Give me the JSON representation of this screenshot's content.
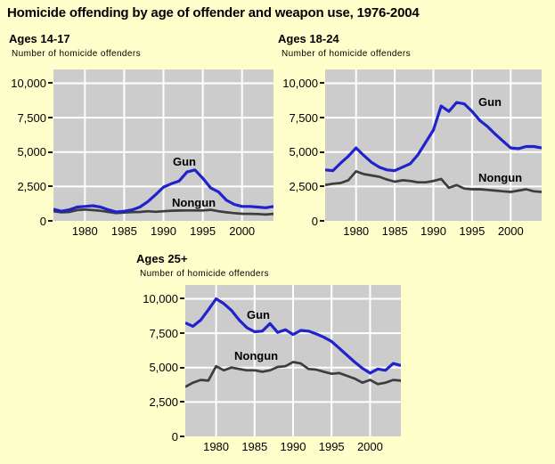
{
  "page_title": "Homicide offending by age of offender and weapon use, 1976-2004",
  "colors": {
    "page_bg": "#FFFFCC",
    "plot_bg": "#CCCCCC",
    "grid": "#FFFFFF",
    "gun": "#2222CC",
    "nongun": "#3D3D3D",
    "text": "#000000",
    "tick": "#1A1A1A"
  },
  "years": [
    1976,
    1977,
    1978,
    1979,
    1980,
    1981,
    1982,
    1983,
    1984,
    1985,
    1986,
    1987,
    1988,
    1989,
    1990,
    1991,
    1992,
    1993,
    1994,
    1995,
    1996,
    1997,
    1998,
    1999,
    2000,
    2001,
    2002,
    2003,
    2004
  ],
  "chart_data": [
    {
      "type": "line",
      "title": "Ages 14-17",
      "ylabel": "Number of homicide offenders",
      "xlabel": "",
      "xlim": [
        1976,
        2004
      ],
      "ylim": [
        0,
        11000
      ],
      "grid": true,
      "x_ticks": [
        1980,
        1985,
        1990,
        1995,
        2000
      ],
      "y_ticks": [
        {
          "value": 0,
          "label": "0"
        },
        {
          "value": 2500,
          "label": "2,500"
        },
        {
          "value": 5000,
          "label": "5,000"
        },
        {
          "value": 7500,
          "label": "7,500"
        },
        {
          "value": 10000,
          "label": "10,000"
        }
      ],
      "series": [
        {
          "name": "Nongun",
          "color_key": "nongun",
          "values": [
            700,
            620,
            650,
            780,
            820,
            780,
            730,
            650,
            560,
            600,
            640,
            650,
            700,
            660,
            700,
            740,
            750,
            760,
            760,
            760,
            800,
            700,
            620,
            560,
            520,
            510,
            500,
            460,
            510
          ],
          "label_pos": {
            "x": 133,
            "y": 142
          }
        },
        {
          "name": "Gun",
          "color_key": "gun",
          "values": [
            850,
            700,
            800,
            1000,
            1050,
            1100,
            1000,
            800,
            650,
            700,
            800,
            1000,
            1400,
            1900,
            2450,
            2700,
            2900,
            3550,
            3700,
            3100,
            2400,
            2100,
            1500,
            1200,
            1050,
            1050,
            1000,
            950,
            1050
          ],
          "label_pos": {
            "x": 134,
            "y": 96
          }
        }
      ]
    },
    {
      "type": "line",
      "title": "Ages 18-24",
      "ylabel": "Number of homicide offenders",
      "xlabel": "",
      "xlim": [
        1976,
        2004
      ],
      "ylim": [
        0,
        11000
      ],
      "grid": true,
      "x_ticks": [
        1980,
        1985,
        1990,
        1995,
        2000
      ],
      "y_ticks": [
        {
          "value": 0,
          "label": "0"
        },
        {
          "value": 2500,
          "label": "2,500"
        },
        {
          "value": 5000,
          "label": "5,000"
        },
        {
          "value": 7500,
          "label": "7,500"
        },
        {
          "value": 10000,
          "label": "10,000"
        }
      ],
      "series": [
        {
          "name": "Nongun",
          "color_key": "nongun",
          "values": [
            2600,
            2700,
            2750,
            2950,
            3600,
            3400,
            3300,
            3200,
            3000,
            2850,
            2950,
            2900,
            2800,
            2800,
            2900,
            3050,
            2400,
            2600,
            2350,
            2300,
            2300,
            2250,
            2200,
            2150,
            2100,
            2200,
            2300,
            2150,
            2100
          ],
          "label_pos": {
            "x": 172,
            "y": 114
          }
        },
        {
          "name": "Gun",
          "color_key": "gun",
          "values": [
            3700,
            3650,
            4200,
            4700,
            5300,
            4750,
            4250,
            3900,
            3700,
            3650,
            3900,
            4150,
            4800,
            5700,
            6600,
            8350,
            7950,
            8600,
            8500,
            7950,
            7300,
            6850,
            6300,
            5800,
            5300,
            5250,
            5400,
            5400,
            5300
          ],
          "label_pos": {
            "x": 172,
            "y": 29
          }
        }
      ]
    },
    {
      "type": "line",
      "title": "Ages 25+",
      "ylabel": "Number of homicide offenders",
      "xlabel": "",
      "xlim": [
        1976,
        2004
      ],
      "ylim": [
        0,
        11000
      ],
      "grid": true,
      "x_ticks": [
        1980,
        1985,
        1990,
        1995,
        2000
      ],
      "y_ticks": [
        {
          "value": 0,
          "label": "0"
        },
        {
          "value": 2500,
          "label": "2,500"
        },
        {
          "value": 5000,
          "label": "5,000"
        },
        {
          "value": 7500,
          "label": "7,500"
        },
        {
          "value": 10000,
          "label": "10,000"
        }
      ],
      "series": [
        {
          "name": "Nongun",
          "color_key": "nongun",
          "values": [
            3600,
            3900,
            4100,
            4050,
            5100,
            4800,
            5000,
            4900,
            4800,
            4800,
            4700,
            4800,
            5050,
            5100,
            5400,
            5300,
            4900,
            4850,
            4700,
            4550,
            4600,
            4400,
            4200,
            3900,
            4100,
            3800,
            3900,
            4100,
            4050
          ],
          "label_pos": {
            "x": 55,
            "y": 72
          }
        },
        {
          "name": "Gun",
          "color_key": "gun",
          "values": [
            8250,
            8000,
            8450,
            9200,
            10000,
            9650,
            9150,
            8450,
            7900,
            7600,
            7650,
            8200,
            7550,
            7750,
            7400,
            7700,
            7650,
            7450,
            7200,
            6900,
            6400,
            5900,
            5400,
            4950,
            4600,
            4900,
            4800,
            5300,
            5150
          ],
          "label_pos": {
            "x": 69,
            "y": 26
          }
        }
      ]
    }
  ]
}
